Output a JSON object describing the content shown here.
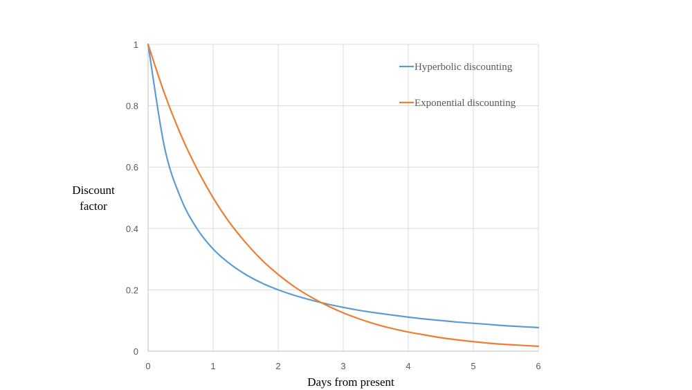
{
  "chart_data": {
    "type": "line",
    "title": "",
    "xlabel": "Days from present",
    "ylabel_lines": [
      "Discount",
      "factor"
    ],
    "xlim": [
      0,
      6
    ],
    "ylim": [
      0,
      1
    ],
    "x_ticks": [
      0,
      1,
      2,
      3,
      4,
      5,
      6
    ],
    "x_tick_labels": [
      "0",
      "1",
      "2",
      "3",
      "4",
      "5",
      "6"
    ],
    "y_ticks": [
      0,
      0.2,
      0.4,
      0.6,
      0.8,
      1
    ],
    "y_tick_labels": [
      "0",
      "0.2",
      "0.4",
      "0.6",
      "0.8",
      "1"
    ],
    "grid": true,
    "legend_position": "top-right",
    "x": [
      0,
      0.25,
      0.5,
      0.75,
      1,
      1.25,
      1.5,
      1.75,
      2,
      2.25,
      2.5,
      2.75,
      3,
      3.25,
      3.5,
      3.75,
      4,
      4.25,
      4.5,
      4.75,
      5,
      5.25,
      5.5,
      5.75,
      6
    ],
    "series": [
      {
        "name": "Hyperbolic discounting",
        "color": "#5b9bd5",
        "values": [
          1,
          0.667,
          0.5,
          0.4,
          0.333,
          0.286,
          0.25,
          0.222,
          0.2,
          0.182,
          0.167,
          0.154,
          0.143,
          0.133,
          0.125,
          0.118,
          0.111,
          0.105,
          0.1,
          0.095,
          0.091,
          0.087,
          0.083,
          0.08,
          0.077
        ]
      },
      {
        "name": "Exponential discounting",
        "color": "#ed7d31",
        "values": [
          1,
          0.841,
          0.707,
          0.595,
          0.5,
          0.42,
          0.354,
          0.297,
          0.25,
          0.21,
          0.177,
          0.149,
          0.125,
          0.105,
          0.088,
          0.074,
          0.0625,
          0.053,
          0.044,
          0.037,
          0.031,
          0.026,
          0.022,
          0.019,
          0.016
        ]
      }
    ]
  }
}
